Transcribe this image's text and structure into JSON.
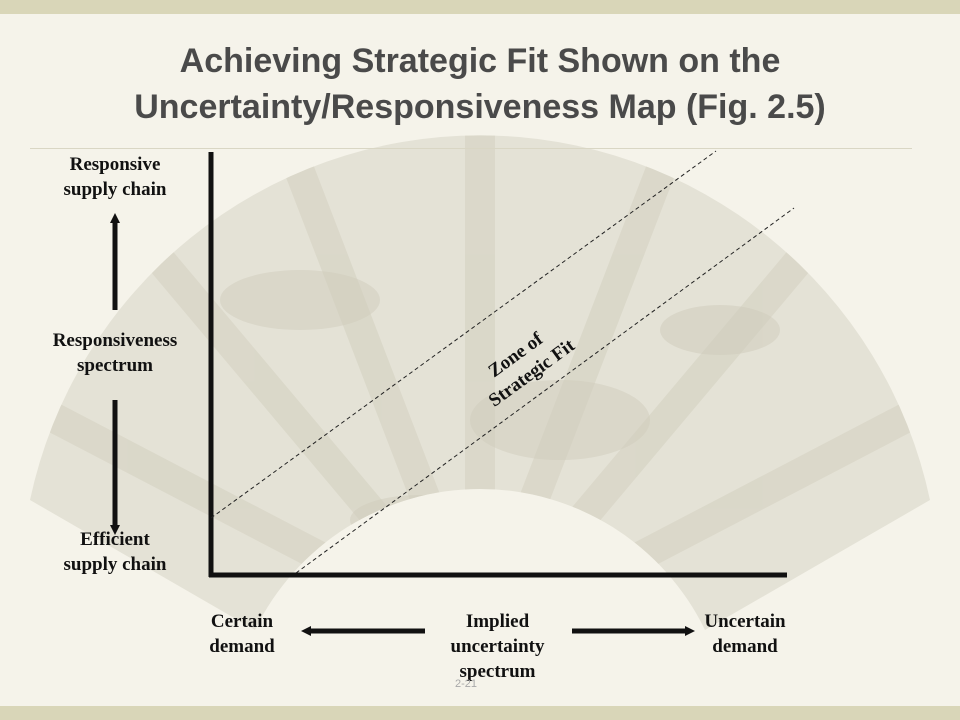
{
  "slide": {
    "title_line1": "Achieving Strategic Fit Shown on the",
    "title_line2": "Uncertainty/Responsiveness Map (Fig. 2.5)",
    "slide_number": "2-21"
  },
  "vertical_axis": {
    "top_label": [
      "Responsive",
      "supply chain"
    ],
    "middle_label": [
      "Responsiveness",
      "spectrum"
    ],
    "bottom_label": [
      "Efficient",
      "supply chain"
    ]
  },
  "horizontal_axis": {
    "left_label": [
      "Certain",
      "demand"
    ],
    "middle_label": [
      "Implied",
      "uncertainty",
      "spectrum"
    ],
    "right_label": [
      "Uncertain",
      "demand"
    ]
  },
  "zone": {
    "label": [
      "Zone of",
      "Strategic Fit"
    ]
  },
  "colors": {
    "background": "#f5f3ea",
    "border": "#d9d6b8",
    "title": "#4a4a4a",
    "ink": "#111111"
  }
}
